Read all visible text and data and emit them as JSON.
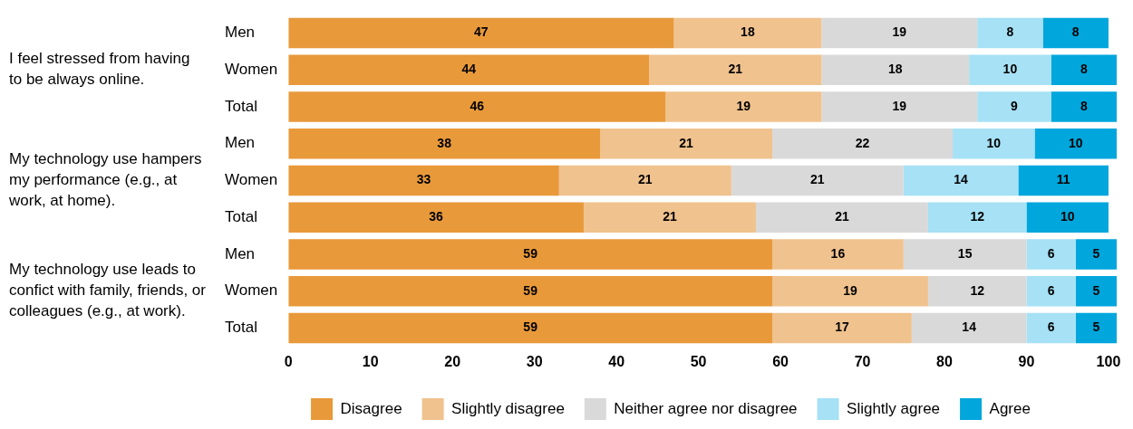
{
  "chart_data": {
    "type": "bar",
    "orientation": "horizontal",
    "stacked": true,
    "data_labels": true,
    "grid": false,
    "legend": "bottom",
    "categories": [
      "Men",
      "Women",
      "Total",
      "Men",
      "Women",
      "Total",
      "Men",
      "Women",
      "Total"
    ],
    "series": [
      {
        "name": "Disagree",
        "color": "#e8993a",
        "values": [
          47,
          44,
          46,
          38,
          33,
          36,
          59,
          59,
          59
        ]
      },
      {
        "name": "Slightly disagree",
        "color": "#f0c28e",
        "values": [
          18,
          21,
          19,
          21,
          21,
          21,
          16,
          19,
          17
        ]
      },
      {
        "name": "Neither agree nor disagree",
        "color": "#d9d9d9",
        "values": [
          19,
          18,
          19,
          22,
          21,
          21,
          15,
          12,
          14
        ]
      },
      {
        "name": "Slightly agree",
        "color": "#a6e1f5",
        "values": [
          8,
          10,
          9,
          10,
          14,
          12,
          6,
          6,
          6
        ]
      },
      {
        "name": "Agree",
        "color": "#00a6dc",
        "values": [
          8,
          8,
          8,
          10,
          11,
          10,
          5,
          5,
          5
        ]
      }
    ],
    "xlim": [
      0,
      101
    ],
    "xticks": [
      0,
      10,
      20,
      30,
      40,
      50,
      60,
      70,
      80,
      90,
      100
    ],
    "annotations": [
      "I feel stressed from having to be always online.",
      "My technology use hampers my performance (e.g., at work, at home).",
      "My technology use leads to confict with family, friends, or colleagues (e.g., at work)."
    ]
  }
}
